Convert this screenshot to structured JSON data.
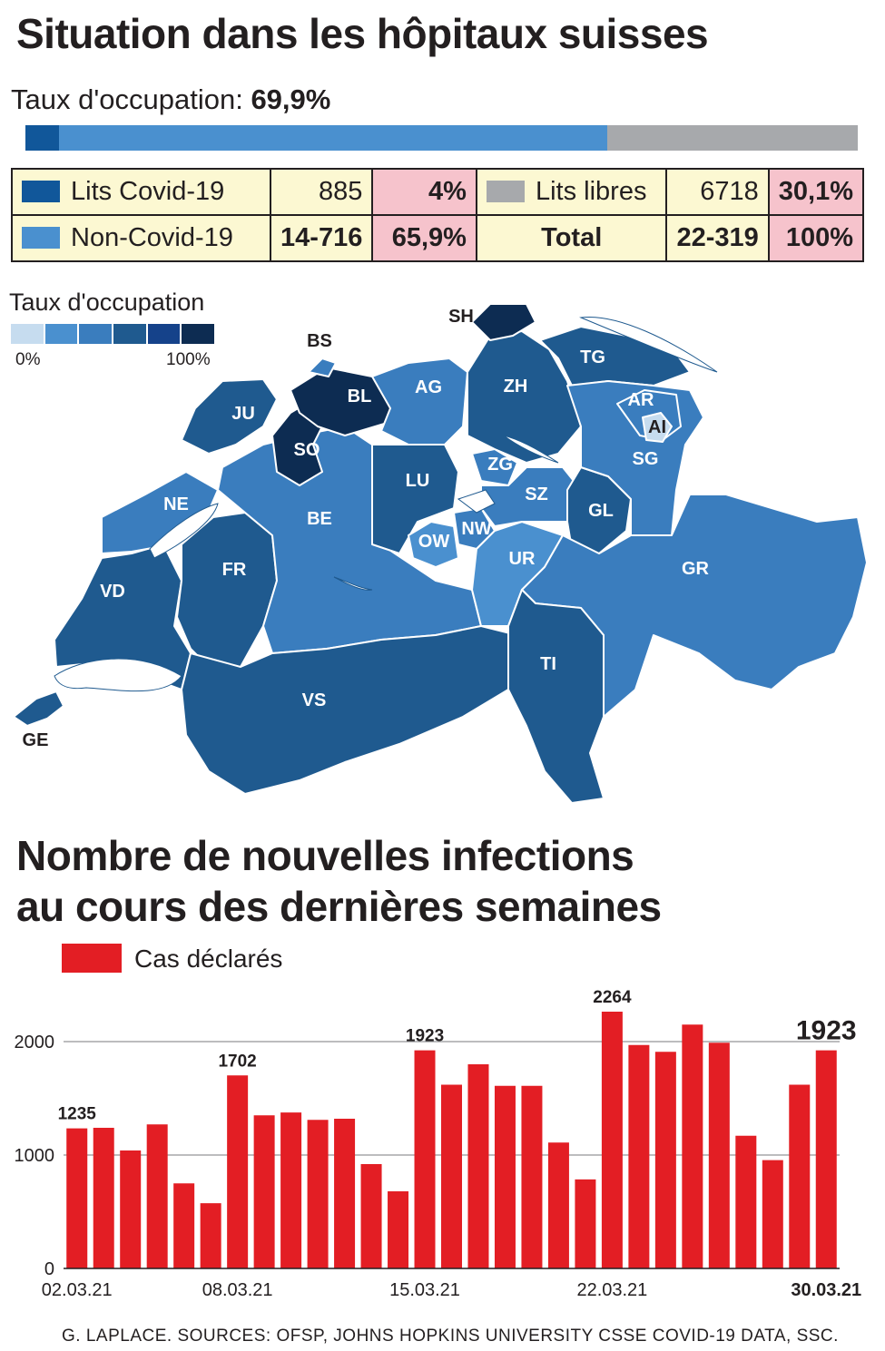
{
  "header": {
    "title": "Situation dans les hôpitaux suisses",
    "occupancy_label": "Taux d'occupation:",
    "occupancy_value": "69,9%"
  },
  "occupancy_bar": {
    "covid_fraction": 0.04,
    "noncovid_fraction": 0.659,
    "free_fraction": 0.301,
    "colors": {
      "covid": "#11579a",
      "noncovid": "#4a90cf",
      "free": "#a7a9ac"
    }
  },
  "stats_table": {
    "covid": {
      "label": "Lits Covid-19",
      "value": "885",
      "pct": "4%"
    },
    "noncovid": {
      "label": "Non-Covid-19",
      "value": "14-716",
      "pct": "65,9%"
    },
    "free": {
      "label": "Lits libres",
      "value": "6718",
      "pct": "30,1%"
    },
    "total": {
      "label": "Total",
      "value": "22-319",
      "pct": "100%"
    }
  },
  "map": {
    "legend_title": "Taux d'occupation",
    "legend_min": "0%",
    "legend_max": "100%",
    "scale_colors": [
      "#c6dcef",
      "#4a90cf",
      "#3a7dbe",
      "#1f5a8f",
      "#15428a",
      "#0d2c52"
    ],
    "cantons": {
      "GE": "GE",
      "VD": "VD",
      "NE": "NE",
      "FR": "FR",
      "JU": "JU",
      "BS": "BS",
      "BL": "BL",
      "SO": "SO",
      "BE": "BE",
      "VS": "VS",
      "AG": "AG",
      "LU": "LU",
      "OW": "OW",
      "NW": "NW",
      "ZG": "ZG",
      "ZH": "ZH",
      "SH": "SH",
      "TG": "TG",
      "AR": "AR",
      "AI": "AI",
      "SG": "SG",
      "SZ": "SZ",
      "GL": "GL",
      "UR": "UR",
      "GR": "GR",
      "TI": "TI"
    }
  },
  "infections": {
    "title_line1": "Nombre de nouvelles infections",
    "title_line2": "au cours des dernières semaines",
    "legend_label": "Cas déclarés",
    "bar_color": "#e31e24"
  },
  "chart_data": {
    "type": "bar",
    "series": [
      {
        "name": "Cas déclarés",
        "values": [
          1235,
          1240,
          1040,
          1270,
          750,
          575,
          1702,
          1350,
          1375,
          1310,
          1320,
          920,
          680,
          1923,
          1620,
          1800,
          1610,
          1610,
          1110,
          785,
          2264,
          1970,
          1910,
          2150,
          1990,
          1170,
          955,
          1620,
          1923
        ]
      }
    ],
    "x_tick_labels": [
      {
        "index": 0,
        "label": "02.03.21"
      },
      {
        "index": 6,
        "label": "08.03.21"
      },
      {
        "index": 13,
        "label": "15.03.21"
      },
      {
        "index": 20,
        "label": "22.03.21"
      },
      {
        "index": 28,
        "label": "30.03.21"
      }
    ],
    "y_ticks": [
      0,
      1000,
      2000
    ],
    "ylim": [
      0,
      2400
    ],
    "data_labels": [
      {
        "index": 0,
        "label": "1235"
      },
      {
        "index": 6,
        "label": "1702"
      },
      {
        "index": 13,
        "label": "1923"
      },
      {
        "index": 20,
        "label": "2264"
      },
      {
        "index": 28,
        "label": "1923"
      }
    ],
    "grid": true
  },
  "footer": {
    "source": "G. LAPLACE. SOURCES: OFSP, JOHNS HOPKINS UNIVERSITY CSSE COVID-19 DATA, SSC."
  }
}
